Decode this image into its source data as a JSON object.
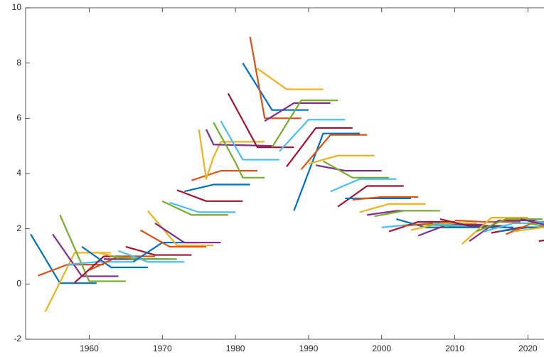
{
  "chart_data": {
    "type": "line",
    "xlim": [
      1951.3,
      2022.2
    ],
    "ylim": [
      -2,
      10
    ],
    "xticks": [
      1960,
      1970,
      1980,
      1990,
      2000,
      2010,
      2020
    ],
    "yticks": [
      -2,
      0,
      2,
      4,
      6,
      8,
      10
    ],
    "grid": false,
    "series": [
      {
        "color": "#0072bd",
        "x": [
          1952,
          1956,
          1961
        ],
        "values": [
          1.8,
          0.03,
          0.03
        ]
      },
      {
        "color": "#d95319",
        "x": [
          1953,
          1957,
          1962
        ],
        "values": [
          0.3,
          0.7,
          0.7
        ]
      },
      {
        "color": "#edb120",
        "x": [
          1954,
          1958,
          1963
        ],
        "values": [
          -1.0,
          1.13,
          1.13
        ]
      },
      {
        "color": "#7e2f8e",
        "x": [
          1955,
          1959,
          1964
        ],
        "values": [
          1.8,
          0.28,
          0.28
        ]
      },
      {
        "color": "#77ac30",
        "x": [
          1956,
          1960,
          1965
        ],
        "values": [
          2.5,
          0.1,
          0.1
        ]
      },
      {
        "color": "#4dbeee",
        "x": [
          1957,
          1961,
          1966
        ],
        "values": [
          0.7,
          0.8,
          0.8
        ]
      },
      {
        "color": "#a2142f",
        "x": [
          1958,
          1962,
          1967
        ],
        "values": [
          0.05,
          1.0,
          1.0
        ]
      },
      {
        "color": "#0072bd",
        "x": [
          1959,
          1963,
          1968
        ],
        "values": [
          1.35,
          0.6,
          0.6
        ]
      },
      {
        "color": "#d95319",
        "x": [
          1960,
          1964,
          1969
        ],
        "values": [
          0.5,
          1.0,
          1.0
        ]
      },
      {
        "color": "#edb120",
        "x": [
          1961,
          1965,
          1970
        ],
        "values": [
          1.15,
          0.9,
          0.9
        ]
      },
      {
        "color": "#7e2f8e",
        "x": [
          1962,
          1966,
          1971
        ],
        "values": [
          0.9,
          0.9,
          0.9
        ]
      },
      {
        "color": "#77ac30",
        "x": [
          1963,
          1967,
          1972
        ],
        "values": [
          1.0,
          0.9,
          0.9
        ]
      },
      {
        "color": "#4dbeee",
        "x": [
          1964,
          1968,
          1973
        ],
        "values": [
          1.2,
          0.8,
          0.8
        ]
      },
      {
        "color": "#a2142f",
        "x": [
          1965,
          1969,
          1974
        ],
        "values": [
          1.35,
          1.05,
          1.05
        ]
      },
      {
        "color": "#0072bd",
        "x": [
          1966,
          1970,
          1975
        ],
        "values": [
          0.8,
          1.5,
          1.5
        ]
      },
      {
        "color": "#d95319",
        "x": [
          1967,
          1971,
          1976
        ],
        "values": [
          1.95,
          1.35,
          1.35
        ]
      },
      {
        "color": "#edb120",
        "x": [
          1968,
          1972,
          1977
        ],
        "values": [
          2.65,
          1.4,
          1.4
        ]
      },
      {
        "color": "#7e2f8e",
        "x": [
          1969,
          1973,
          1978
        ],
        "values": [
          2.2,
          1.5,
          1.5
        ]
      },
      {
        "color": "#77ac30",
        "x": [
          1970,
          1974,
          1979
        ],
        "values": [
          3.0,
          2.5,
          2.5
        ]
      },
      {
        "color": "#4dbeee",
        "x": [
          1971,
          1975,
          1980
        ],
        "values": [
          2.95,
          2.6,
          2.6
        ]
      },
      {
        "color": "#a2142f",
        "x": [
          1972,
          1976,
          1981
        ],
        "values": [
          3.4,
          3.0,
          3.0
        ]
      },
      {
        "color": "#0072bd",
        "x": [
          1973,
          1977,
          1982
        ],
        "values": [
          3.35,
          3.6,
          3.6
        ]
      },
      {
        "color": "#d95319",
        "x": [
          1974,
          1978,
          1983
        ],
        "values": [
          3.75,
          4.1,
          4.1
        ]
      },
      {
        "color": "#edb120",
        "x": [
          1975,
          1976,
          1977,
          1978,
          1984
        ],
        "values": [
          5.6,
          3.8,
          4.6,
          5.15,
          5.15
        ]
      },
      {
        "color": "#7e2f8e",
        "x": [
          1976,
          1977,
          1985
        ],
        "values": [
          5.6,
          5.05,
          5.0
        ]
      },
      {
        "color": "#77ac30",
        "x": [
          1977,
          1980,
          1981,
          1984
        ],
        "values": [
          5.85,
          4.4,
          3.85,
          3.85
        ]
      },
      {
        "color": "#4dbeee",
        "x": [
          1978,
          1981,
          1986
        ],
        "values": [
          5.9,
          4.5,
          4.5
        ]
      },
      {
        "color": "#a2142f",
        "x": [
          1979,
          1983,
          1988
        ],
        "values": [
          6.9,
          4.95,
          4.95
        ]
      },
      {
        "color": "#0072bd",
        "x": [
          1981,
          1985,
          1990
        ],
        "values": [
          8.0,
          6.3,
          6.3
        ]
      },
      {
        "color": "#d95319",
        "x": [
          1982,
          1984,
          1989
        ],
        "values": [
          8.95,
          6.0,
          6.0
        ]
      },
      {
        "color": "#edb120",
        "x": [
          1983,
          1987,
          1992
        ],
        "values": [
          7.8,
          7.05,
          7.05
        ]
      },
      {
        "color": "#7e2f8e",
        "x": [
          1984,
          1988,
          1993
        ],
        "values": [
          5.9,
          6.55,
          6.55
        ]
      },
      {
        "color": "#77ac30",
        "x": [
          1985,
          1989,
          1994
        ],
        "values": [
          4.95,
          6.65,
          6.65
        ]
      },
      {
        "color": "#4dbeee",
        "x": [
          1986,
          1990,
          1995
        ],
        "values": [
          4.8,
          5.95,
          5.95
        ]
      },
      {
        "color": "#a2142f",
        "x": [
          1987,
          1991,
          1996
        ],
        "values": [
          4.25,
          5.65,
          5.65
        ]
      },
      {
        "color": "#0072bd",
        "x": [
          1988,
          1992,
          1997
        ],
        "values": [
          2.65,
          5.45,
          5.45
        ]
      },
      {
        "color": "#d95319",
        "x": [
          1989,
          1993,
          1998
        ],
        "values": [
          4.15,
          5.4,
          5.4
        ]
      },
      {
        "color": "#edb120",
        "x": [
          1990,
          1994,
          1999
        ],
        "values": [
          4.35,
          4.65,
          4.65
        ]
      },
      {
        "color": "#7e2f8e",
        "x": [
          1991,
          1995,
          2000
        ],
        "values": [
          4.3,
          4.1,
          4.1
        ]
      },
      {
        "color": "#77ac30",
        "x": [
          1992,
          1996,
          2001
        ],
        "values": [
          4.45,
          3.85,
          3.85
        ]
      },
      {
        "color": "#4dbeee",
        "x": [
          1993,
          1997,
          2002
        ],
        "values": [
          3.35,
          3.8,
          3.8
        ]
      },
      {
        "color": "#a2142f",
        "x": [
          1994,
          1998,
          2003
        ],
        "values": [
          2.8,
          3.55,
          3.55
        ]
      },
      {
        "color": "#0072bd",
        "x": [
          1995,
          1999,
          2004
        ],
        "values": [
          3.1,
          3.1,
          3.1
        ]
      },
      {
        "color": "#d95319",
        "x": [
          1996,
          2000,
          2005
        ],
        "values": [
          3.05,
          3.15,
          3.15
        ]
      },
      {
        "color": "#edb120",
        "x": [
          1997,
          2001,
          2006
        ],
        "values": [
          2.6,
          2.9,
          2.9
        ]
      },
      {
        "color": "#7e2f8e",
        "x": [
          1998,
          2002,
          2007
        ],
        "values": [
          2.5,
          2.65,
          2.65
        ]
      },
      {
        "color": "#77ac30",
        "x": [
          1999,
          2003,
          2008
        ],
        "values": [
          2.45,
          2.65,
          2.65
        ]
      },
      {
        "color": "#4dbeee",
        "x": [
          2000,
          2004,
          2009
        ],
        "values": [
          2.05,
          2.15,
          2.15
        ]
      },
      {
        "color": "#a2142f",
        "x": [
          2001,
          2005,
          2010
        ],
        "values": [
          1.9,
          2.25,
          2.25
        ]
      },
      {
        "color": "#0072bd",
        "x": [
          2002,
          2006,
          2011
        ],
        "values": [
          2.35,
          2.05,
          2.05
        ]
      },
      {
        "color": "#d95319",
        "x": [
          2003,
          2007,
          2012
        ],
        "values": [
          2.1,
          2.2,
          2.2
        ]
      },
      {
        "color": "#edb120",
        "x": [
          2004,
          2008,
          2013
        ],
        "values": [
          1.95,
          2.2,
          2.2
        ]
      },
      {
        "color": "#7e2f8e",
        "x": [
          2005,
          2009,
          2014
        ],
        "values": [
          1.75,
          2.15,
          2.15
        ]
      },
      {
        "color": "#77ac30",
        "x": [
          2006,
          2010,
          2015
        ],
        "values": [
          2.15,
          2.1,
          2.1
        ]
      },
      {
        "color": "#4dbeee",
        "x": [
          2007,
          2011,
          2016
        ],
        "values": [
          2.2,
          2.1,
          2.1
        ]
      },
      {
        "color": "#a2142f",
        "x": [
          2008,
          2012,
          2017
        ],
        "values": [
          2.35,
          2.1,
          2.1
        ]
      },
      {
        "color": "#0072bd",
        "x": [
          2009,
          2013,
          2018
        ],
        "values": [
          2.05,
          2.05,
          2.05
        ]
      },
      {
        "color": "#d95319",
        "x": [
          2010,
          2014,
          2019
        ],
        "values": [
          2.3,
          2.25,
          2.25
        ]
      },
      {
        "color": "#edb120",
        "x": [
          2011,
          2015,
          2020
        ],
        "values": [
          1.45,
          2.4,
          2.4
        ]
      },
      {
        "color": "#7e2f8e",
        "x": [
          2012,
          2016,
          2021
        ],
        "values": [
          1.55,
          2.3,
          2.3
        ]
      },
      {
        "color": "#77ac30",
        "x": [
          2013,
          2017,
          2022
        ],
        "values": [
          1.9,
          2.35,
          2.35
        ]
      },
      {
        "color": "#4dbeee",
        "x": [
          2014,
          2018,
          2023
        ],
        "values": [
          1.9,
          2.2,
          2.2
        ]
      },
      {
        "color": "#a2142f",
        "x": [
          2015,
          2019,
          2024
        ],
        "values": [
          1.85,
          2.05,
          2.05
        ]
      },
      {
        "color": "#0072bd",
        "x": [
          2016,
          2020,
          2025
        ],
        "values": [
          1.9,
          2.05,
          2.05
        ]
      },
      {
        "color": "#d95319",
        "x": [
          2017,
          2021,
          2026
        ],
        "values": [
          1.8,
          2.25,
          2.25
        ]
      },
      {
        "color": "#edb120",
        "x": [
          2018,
          2022,
          2027
        ],
        "values": [
          1.9,
          2.05,
          2.05
        ]
      },
      {
        "color": "#7e2f8e",
        "x": [
          2019,
          2023,
          2028
        ],
        "values": [
          2.35,
          2.1,
          2.1
        ]
      },
      {
        "color": "#77ac30",
        "x": [
          2020,
          2024,
          2029
        ],
        "values": [
          2.2,
          2.0,
          2.0
        ]
      },
      {
        "color": "#4dbeee",
        "x": [
          2021,
          2025,
          2030
        ],
        "values": [
          2.3,
          2.0,
          2.0
        ]
      },
      {
        "color": "#a2142f",
        "x": [
          2021.5,
          2025,
          2030
        ],
        "values": [
          1.55,
          1.7,
          1.7
        ]
      }
    ]
  }
}
